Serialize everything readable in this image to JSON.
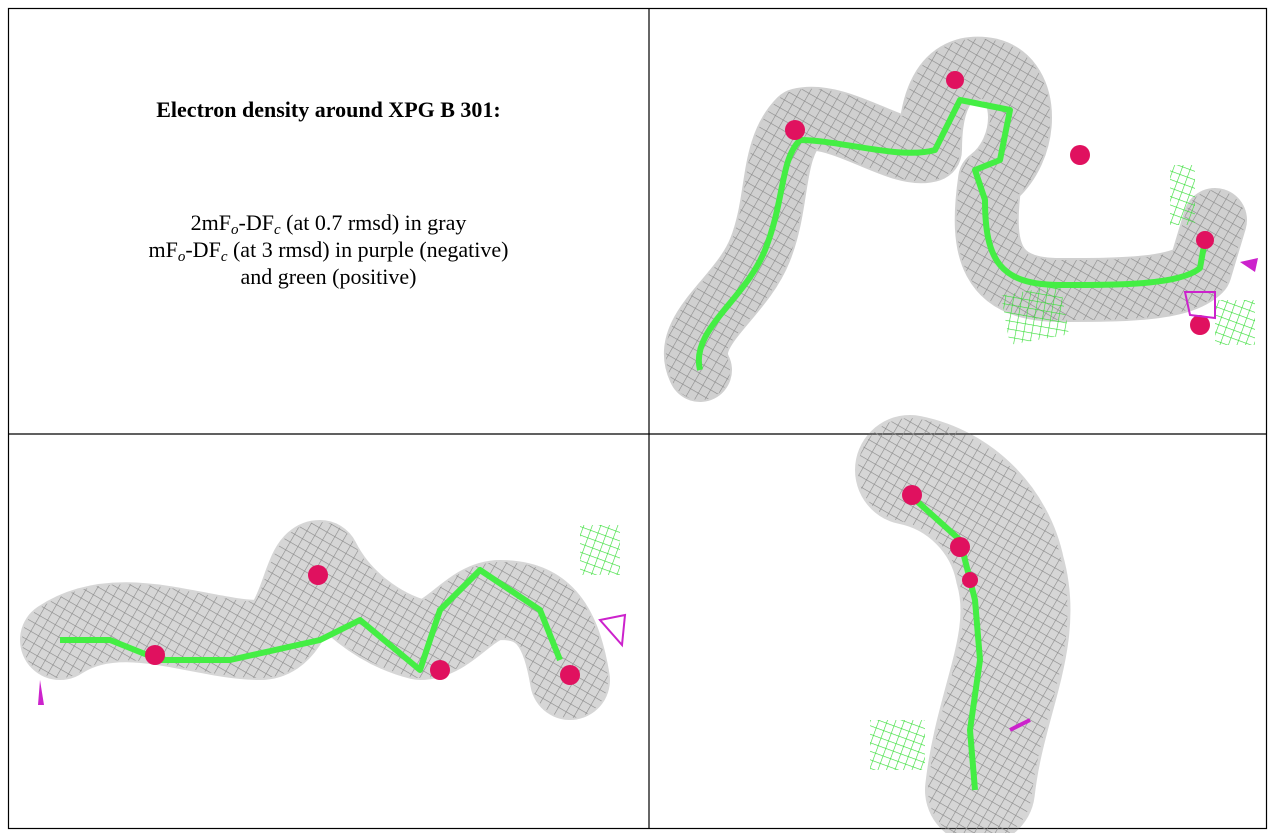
{
  "header": {
    "title": "Electron density around XPG B 301:"
  },
  "caption": {
    "lines": [
      [
        "2mF",
        {
          "sub": "o"
        },
        "-DF",
        {
          "sub": "c"
        },
        " (at 0.7 rmsd) in gray"
      ],
      [
        "mF",
        {
          "sub": "o"
        },
        "-DF",
        {
          "sub": "c"
        },
        " (at 3 rmsd) in purple (negative)"
      ],
      [
        "and green (positive)"
      ]
    ]
  }
}
